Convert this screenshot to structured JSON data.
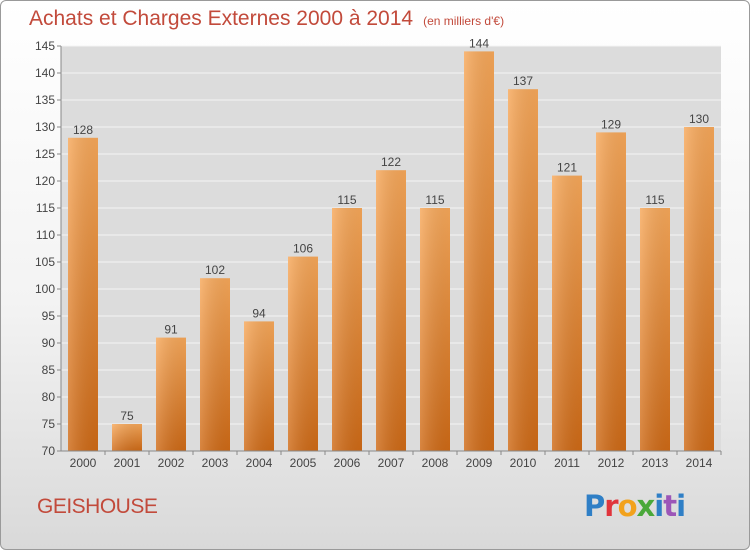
{
  "title": "Achats et Charges Externes 2000 à 2014",
  "unit": "(en milliers d'€)",
  "location": "GEISHOUSE",
  "logo": "Proxiti",
  "chart_data": {
    "type": "bar",
    "categories": [
      "2000",
      "2001",
      "2002",
      "2003",
      "2004",
      "2005",
      "2006",
      "2007",
      "2008",
      "2009",
      "2010",
      "2011",
      "2012",
      "2013",
      "2014"
    ],
    "values": [
      128,
      75,
      91,
      102,
      94,
      106,
      115,
      122,
      115,
      144,
      137,
      121,
      129,
      115,
      130
    ],
    "ylim": [
      70,
      145
    ],
    "yticks": [
      70,
      75,
      80,
      85,
      90,
      95,
      100,
      105,
      110,
      115,
      120,
      125,
      130,
      135,
      140,
      145
    ],
    "grid": true,
    "bar_color": "#e8852f",
    "title": "Achats et Charges Externes 2000 à 2014",
    "xlabel": "",
    "ylabel": ""
  }
}
